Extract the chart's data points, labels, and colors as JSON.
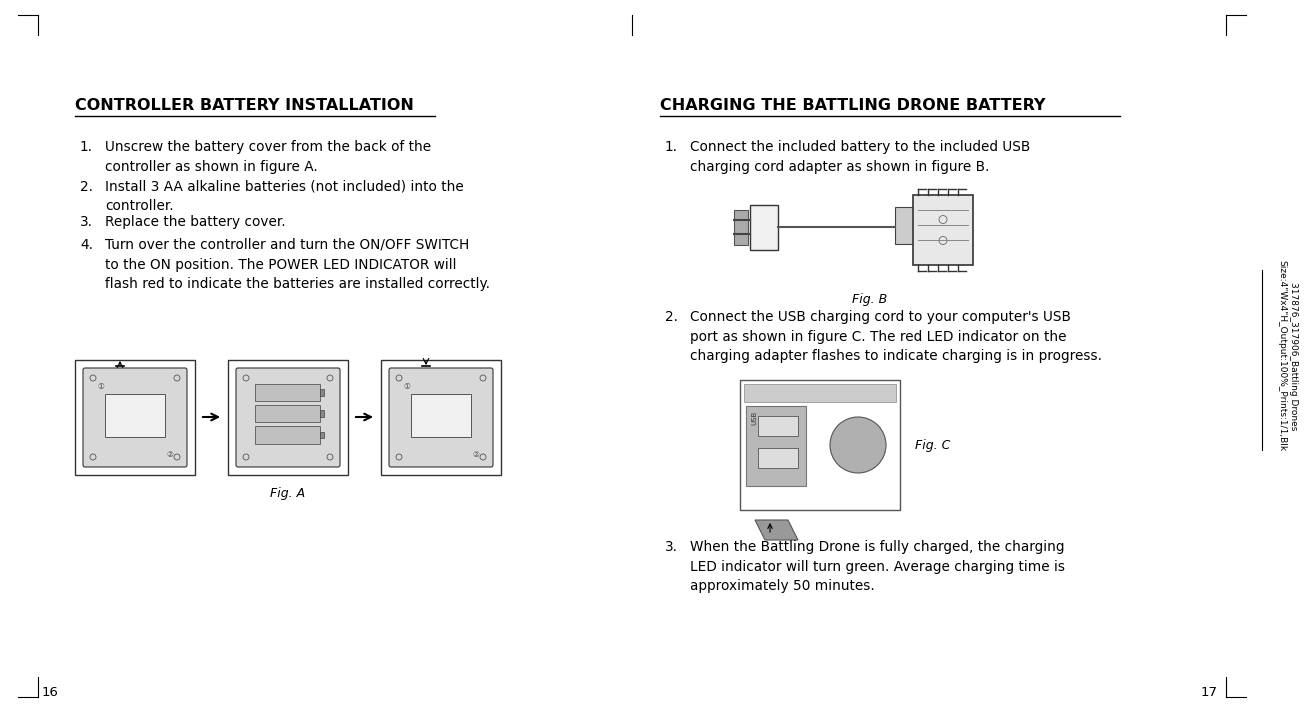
{
  "bg_color": "#ffffff",
  "text_color": "#000000",
  "left_title": "CONTROLLER BATTERY INSTALLATION",
  "right_title": "CHARGING THE BATTLING DRONE BATTERY",
  "left_items": [
    [
      "1.",
      "Unscrew the battery cover from the back of the\ncontroller as shown in figure A."
    ],
    [
      "2.",
      "Install 3 AA alkaline batteries (not included) into the\ncontroller."
    ],
    [
      "3.",
      "Replace the battery cover."
    ],
    [
      "4.",
      "Turn over the controller and turn the ON/OFF SWITCH\nto the ON position. The POWER LED INDICATOR will\nflash red to indicate the batteries are installed correctly."
    ]
  ],
  "right_items": [
    [
      "1.",
      "Connect the included battery to the included USB\ncharging cord adapter as shown in figure B."
    ],
    [
      "2.",
      "Connect the USB charging cord to your computer's USB\nport as shown in figure C. The red LED indicator on the\ncharging adapter flashes to indicate charging is in progress."
    ],
    [
      "3.",
      "When the Battling Drone is fully charged, the charging\nLED indicator will turn green. Average charging time is\napproximately 50 minutes."
    ]
  ],
  "fig_a_caption": "Fig. A",
  "fig_b_caption": "Fig. B",
  "fig_c_caption": "Fig. C",
  "page_left": "16",
  "page_right": "17",
  "sidebar_text": "317876_317906_Battling Drones\nSize:4\"Wx4\"H_Output:100%_Prints:1/1,Blk",
  "title_fontsize": 11.5,
  "body_fontsize": 9.8,
  "caption_fontsize": 9,
  "page_fontsize": 9.5
}
